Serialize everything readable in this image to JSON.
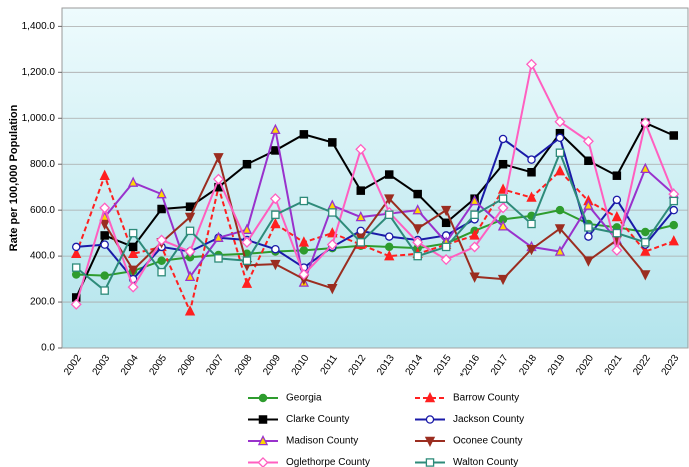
{
  "chart_data": {
    "type": "line",
    "y_label": "Rate per 100,000 Population",
    "categories": [
      "2002",
      "2003",
      "2004",
      "2005",
      "2006",
      "2007",
      "2008",
      "2009",
      "2010",
      "2011",
      "2012",
      "2013",
      "2014",
      "2015",
      "*2016",
      "2017",
      "2018",
      "2019",
      "2020",
      "2021",
      "2022",
      "2023"
    ],
    "ylim": [
      0,
      1480
    ],
    "yticks": [
      {
        "value": 0,
        "label": "0.0"
      },
      {
        "value": 200,
        "label": "200.0"
      },
      {
        "value": 400,
        "label": "400.0"
      },
      {
        "value": 600,
        "label": "600.0"
      },
      {
        "value": 800,
        "label": "800.0"
      },
      {
        "value": 1000,
        "label": "1,000.0"
      },
      {
        "value": 1200,
        "label": "1,200.0"
      },
      {
        "value": 1400,
        "label": "1,400.0"
      }
    ],
    "grid": true,
    "series": [
      {
        "name": "Georgia",
        "color": "#2e9c2e",
        "marker": "circle",
        "marker_fill": "#2e9c2e",
        "dashed": false,
        "values": [
          320,
          315,
          335,
          380,
          395,
          405,
          410,
          420,
          425,
          435,
          445,
          440,
          435,
          455,
          510,
          560,
          575,
          600,
          540,
          525,
          505,
          535
        ]
      },
      {
        "name": "Barrow County",
        "color": "#ff2020",
        "marker": "triangle",
        "marker_fill": "#ff2020",
        "dashed": true,
        "values": [
          410,
          750,
          410,
          440,
          160,
          700,
          280,
          540,
          460,
          500,
          450,
          400,
          410,
          450,
          490,
          690,
          655,
          770,
          640,
          570,
          420,
          465
        ]
      },
      {
        "name": "Clarke County",
        "color": "#000000",
        "marker": "square",
        "marker_fill": "#000000",
        "dashed": false,
        "values": [
          220,
          490,
          440,
          605,
          615,
          700,
          800,
          860,
          930,
          895,
          685,
          755,
          670,
          545,
          650,
          800,
          765,
          935,
          815,
          750,
          980,
          925
        ]
      },
      {
        "name": "Jackson County",
        "color": "#1a1aa8",
        "marker": "circle",
        "marker_fill": "#ffffff",
        "dashed": false,
        "values": [
          440,
          450,
          300,
          440,
          420,
          480,
          470,
          430,
          350,
          440,
          510,
          485,
          470,
          490,
          560,
          910,
          820,
          915,
          485,
          645,
          450,
          600
        ]
      },
      {
        "name": "Madison County",
        "color": "#9932cc",
        "marker": "triangle",
        "marker_fill": "#ffd700",
        "dashed": false,
        "values": [
          null,
          570,
          720,
          670,
          310,
          480,
          515,
          950,
          285,
          620,
          570,
          585,
          600,
          460,
          640,
          530,
          440,
          420,
          620,
          470,
          780,
          670
        ]
      },
      {
        "name": "Oconee County",
        "color": "#9b2d20",
        "marker": "triangle-down",
        "marker_fill": "#9b2d20",
        "dashed": false,
        "values": [
          null,
          540,
          340,
          460,
          570,
          830,
          360,
          365,
          300,
          260,
          480,
          650,
          520,
          600,
          310,
          300,
          430,
          520,
          380,
          470,
          320,
          null
        ]
      },
      {
        "name": "Oglethorpe County",
        "color": "#ff5fc0",
        "marker": "diamond",
        "marker_fill": "#ffffff",
        "dashed": false,
        "values": [
          190,
          610,
          265,
          470,
          420,
          735,
          460,
          650,
          320,
          450,
          865,
          590,
          460,
          385,
          440,
          610,
          1235,
          985,
          900,
          425,
          980,
          670
        ]
      },
      {
        "name": "Walton County",
        "color": "#2e8b7a",
        "marker": "square",
        "marker_fill": "#ffffff",
        "dashed": false,
        "values": [
          350,
          250,
          500,
          330,
          510,
          390,
          380,
          580,
          640,
          590,
          460,
          580,
          400,
          440,
          580,
          650,
          540,
          850,
          525,
          500,
          460,
          640
        ]
      }
    ]
  }
}
